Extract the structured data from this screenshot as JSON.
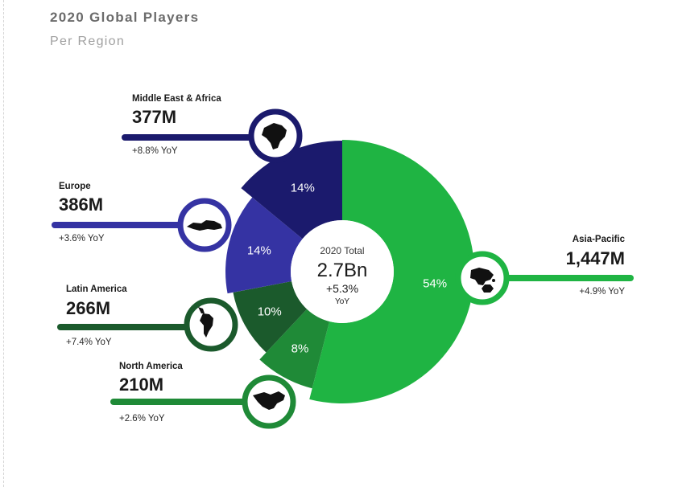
{
  "chart_data": {
    "type": "pie",
    "title": "2020 Global Players",
    "subtitle": "Per Region",
    "center": {
      "caption": "2020 Total",
      "total": "2.7Bn",
      "growth": "+5.3%",
      "growth_unit": "YoY"
    },
    "slices": [
      {
        "name": "Asia-Pacific",
        "percent": 54,
        "percent_label": "54%",
        "value": 1447,
        "value_label": "1,447M",
        "yoy": "+4.9% YoY",
        "color": "#1fb443",
        "icon": "asia-pacific-map-icon"
      },
      {
        "name": "North America",
        "percent": 8,
        "percent_label": "8%",
        "value": 210,
        "value_label": "210M",
        "yoy": "+2.6% YoY",
        "color": "#1f8a37",
        "icon": "north-america-map-icon"
      },
      {
        "name": "Latin America",
        "percent": 10,
        "percent_label": "10%",
        "value": 266,
        "value_label": "266M",
        "yoy": "+7.4% YoY",
        "color": "#1b5a2c",
        "icon": "south-america-map-icon"
      },
      {
        "name": "Europe",
        "percent": 14,
        "percent_label": "14%",
        "value": 386,
        "value_label": "386M",
        "yoy": "+3.6% YoY",
        "color": "#3533a3",
        "icon": "europe-map-icon"
      },
      {
        "name": "Middle East & Africa",
        "percent": 14,
        "percent_label": "14%",
        "value": 377,
        "value_label": "377M",
        "yoy": "+8.8% YoY",
        "color": "#1b1a6d",
        "icon": "africa-map-icon"
      }
    ]
  }
}
